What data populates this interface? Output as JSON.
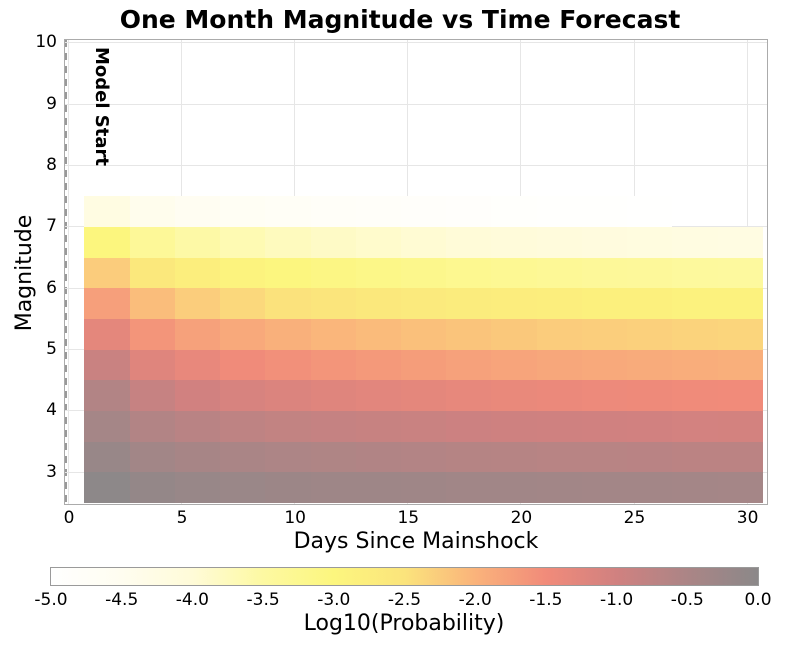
{
  "title": "One Month Magnitude vs Time Forecast",
  "chart_data": {
    "type": "heatmap",
    "title": "One Month Magnitude vs Time Forecast",
    "xlabel": "Days Since Mainshock",
    "ylabel": "Magnitude",
    "grid": true,
    "x_ticks": [
      0,
      5,
      10,
      15,
      20,
      25,
      30
    ],
    "x_tick_labels": [
      "0",
      "5",
      "10",
      "15",
      "20",
      "25",
      "30"
    ],
    "y_ticks": [
      10,
      9,
      8,
      7,
      6,
      5,
      4,
      3
    ],
    "y_tick_labels": [
      "10",
      "9",
      "8",
      "7",
      "6",
      "5",
      "4",
      "3"
    ],
    "xlim_days": [
      -0.15,
      30.85
    ],
    "ylim_magnitude": [
      2.49,
      10.06
    ],
    "time_bin_edges_days": [
      0.7,
      2.7,
      4.7,
      6.7,
      8.7,
      10.7,
      12.7,
      14.7,
      16.7,
      18.7,
      20.7,
      22.7,
      24.7,
      26.7,
      28.7,
      30.7
    ],
    "magnitude_bin_edges": [
      7.5,
      7.0,
      6.5,
      6.0,
      5.5,
      5.0,
      4.5,
      4.0,
      3.5,
      3.0,
      2.5
    ],
    "values_log10_probability": [
      [
        -4.2,
        -4.44,
        -4.56,
        -4.64,
        -4.7,
        -4.75,
        -4.79,
        -4.83,
        -4.86,
        -4.9,
        -4.92,
        -4.94,
        -4.96,
        -4.98,
        -5.0
      ],
      [
        -3.0,
        -3.36,
        -3.54,
        -3.66,
        -3.76,
        -3.83,
        -3.89,
        -3.95,
        -4.0,
        -4.04,
        -4.08,
        -4.12,
        -4.14,
        -4.18,
        -4.2
      ],
      [
        -2.25,
        -2.61,
        -2.79,
        -2.91,
        -3.01,
        -3.08,
        -3.14,
        -3.2,
        -3.25,
        -3.29,
        -3.33,
        -3.37,
        -3.39,
        -3.43,
        -3.45
      ],
      [
        -1.75,
        -2.1,
        -2.27,
        -2.38,
        -2.48,
        -2.54,
        -2.6,
        -2.66,
        -2.71,
        -2.75,
        -2.79,
        -2.82,
        -2.84,
        -2.88,
        -2.9
      ],
      [
        -1.3,
        -1.62,
        -1.77,
        -1.88,
        -1.96,
        -2.03,
        -2.08,
        -2.13,
        -2.17,
        -2.21,
        -2.25,
        -2.28,
        -2.3,
        -2.33,
        -2.35
      ],
      [
        -0.9,
        -1.22,
        -1.37,
        -1.48,
        -1.56,
        -1.63,
        -1.68,
        -1.73,
        -1.77,
        -1.81,
        -1.85,
        -1.88,
        -1.9,
        -1.93,
        -1.95
      ],
      [
        -0.6,
        -0.87,
        -1.01,
        -1.1,
        -1.17,
        -1.22,
        -1.27,
        -1.31,
        -1.35,
        -1.38,
        -1.41,
        -1.44,
        -1.46,
        -1.48,
        -1.5
      ],
      [
        -0.4,
        -0.6,
        -0.69,
        -0.76,
        -0.81,
        -0.85,
        -0.88,
        -0.91,
        -0.94,
        -0.97,
        -0.99,
        -1.0,
        -1.02,
        -1.04,
        -1.05
      ],
      [
        -0.2,
        -0.36,
        -0.43,
        -0.49,
        -0.53,
        -0.56,
        -0.58,
        -0.61,
        -0.63,
        -0.65,
        -0.67,
        -0.68,
        -0.69,
        -0.71,
        -0.72
      ],
      [
        -0.03,
        -0.14,
        -0.2,
        -0.23,
        -0.26,
        -0.29,
        -0.3,
        -0.32,
        -0.34,
        -0.35,
        -0.36,
        -0.37,
        -0.38,
        -0.39,
        -0.4
      ]
    ],
    "model_start": {
      "label": "Model Start",
      "time_days": 0.65
    },
    "mainshock_marker": {
      "time_days": 0,
      "magnitude": 5.96,
      "color": "#512f10"
    },
    "colorbar": {
      "label": "Log10(Probability)",
      "min": -5,
      "max": 0,
      "ticks": [
        -5.0,
        -4.5,
        -4.0,
        -3.5,
        -3.0,
        -2.5,
        -2.0,
        -1.5,
        -1.0,
        -0.5,
        0.0
      ],
      "tick_labels": [
        "-5.0",
        "-4.5",
        "-4.0",
        "-3.5",
        "-3.0",
        "-2.5",
        "-2.0",
        "-1.5",
        "-1.0",
        "-0.5",
        "0.0"
      ]
    },
    "colormap_stops": [
      {
        "value": -5.0,
        "color": "#ffffff"
      },
      {
        "value": -4.5,
        "color": "#fffdf0"
      },
      {
        "value": -4.0,
        "color": "#fffbd8"
      },
      {
        "value": -3.5,
        "color": "#fdf9a2"
      },
      {
        "value": -3.0,
        "color": "#fcf67e"
      },
      {
        "value": -2.5,
        "color": "#fbe47c"
      },
      {
        "value": -2.0,
        "color": "#fab37b"
      },
      {
        "value": -1.5,
        "color": "#f18b7a"
      },
      {
        "value": -1.0,
        "color": "#d08180"
      },
      {
        "value": -0.5,
        "color": "#ab8586"
      },
      {
        "value": 0.0,
        "color": "#8b8889"
      }
    ],
    "colors": {
      "grid": "#e6e6e6",
      "axes_border": "#ababab",
      "model_start_line": "#999999",
      "text": "#000000"
    }
  }
}
